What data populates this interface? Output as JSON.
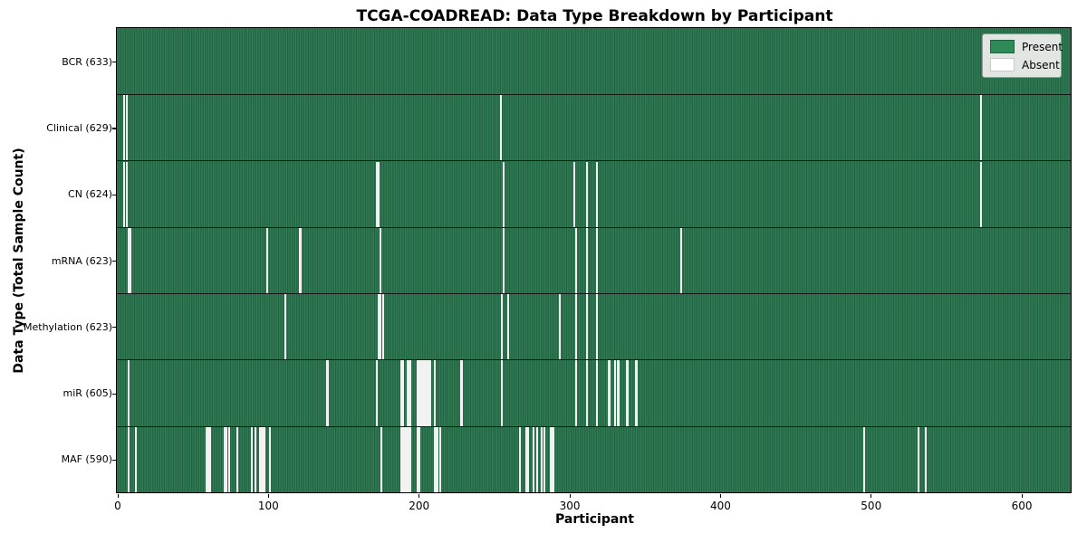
{
  "header": {
    "title": "TCGA-COADREAD: Data Type Breakdown by Participant"
  },
  "axes": {
    "xlabel": "Participant",
    "ylabel": "Data Type (Total Sample Count)",
    "x_tick_labels": [
      "0",
      "100",
      "200",
      "300",
      "400",
      "500",
      "600"
    ]
  },
  "legend": {
    "entries": [
      {
        "label": "Present",
        "color": "#2e8b57"
      },
      {
        "label": "Absent",
        "color": "#ffffff"
      }
    ]
  },
  "chart_data": {
    "type": "heatmap",
    "title": "TCGA-COADREAD: Data Type Breakdown by Participant",
    "xlabel": "Participant",
    "ylabel": "Data Type (Total Sample Count)",
    "x_range": [
      0,
      633
    ],
    "x_tick_values": [
      0,
      100,
      200,
      300,
      400,
      500,
      600
    ],
    "n_participants": 633,
    "legend_position": "upper right",
    "grid": false,
    "colors": {
      "present": "#2e8b57",
      "present_texture_dark": "#1f5f3d",
      "absent": "#f2f2f2"
    },
    "rows": [
      {
        "label": "BCR (633)",
        "data_type": "BCR",
        "present_count": 633,
        "absent_participants": []
      },
      {
        "label": "Clinical (629)",
        "data_type": "Clinical",
        "present_count": 629,
        "absent_participants": [
          4,
          6,
          254,
          573
        ]
      },
      {
        "label": "CN (624)",
        "data_type": "CN",
        "present_count": 624,
        "absent_participants": [
          4,
          6,
          172,
          173,
          256,
          303,
          311,
          318,
          573
        ]
      },
      {
        "label": "mRNA (623)",
        "data_type": "mRNA",
        "present_count": 623,
        "absent_participants": [
          7,
          8,
          99,
          121,
          174,
          256,
          304,
          311,
          318,
          374
        ]
      },
      {
        "label": "Methylation (623)",
        "data_type": "Methylation",
        "present_count": 623,
        "absent_participants": [
          111,
          173,
          174,
          176,
          255,
          259,
          293,
          304,
          311,
          318
        ]
      },
      {
        "label": "miR (605)",
        "data_type": "miR",
        "present_count": 605,
        "absent_participants": [
          7,
          139,
          172,
          188,
          189,
          192,
          193,
          194,
          199,
          200,
          201,
          202,
          203,
          204,
          205,
          206,
          207,
          210,
          228,
          255,
          304,
          311,
          318,
          326,
          330,
          332,
          338,
          344
        ]
      },
      {
        "label": "MAF (590)",
        "data_type": "MAF",
        "present_count": 590,
        "absent_participants": [
          7,
          12,
          59,
          60,
          61,
          71,
          72,
          74,
          79,
          89,
          91,
          94,
          95,
          96,
          97,
          101,
          175,
          188,
          189,
          190,
          191,
          192,
          193,
          194,
          199,
          200,
          210,
          211,
          212,
          214,
          267,
          271,
          272,
          276,
          278,
          281,
          283,
          287,
          288,
          289,
          495,
          531,
          536
        ]
      }
    ]
  }
}
